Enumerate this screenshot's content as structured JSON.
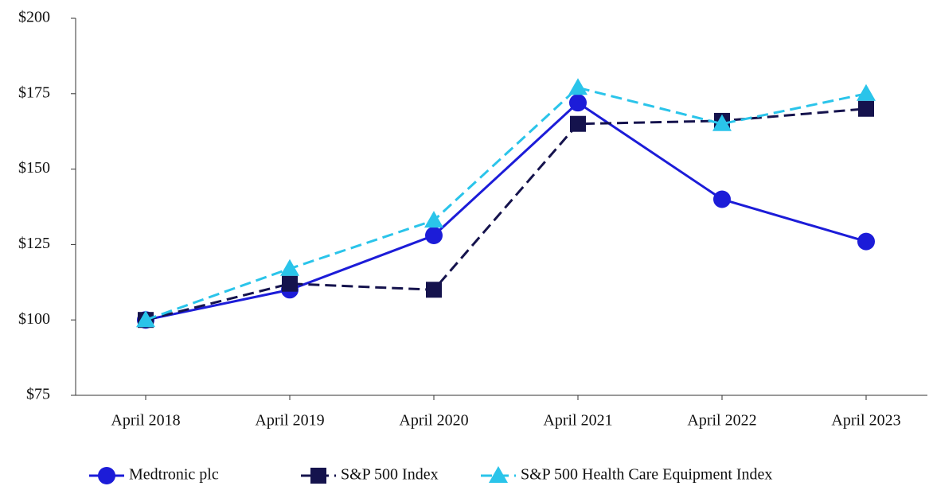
{
  "chart_data": {
    "type": "line",
    "categories": [
      "April 2018",
      "April 2019",
      "April 2020",
      "April 2021",
      "April 2022",
      "April 2023"
    ],
    "series": [
      {
        "name": "Medtronic plc",
        "color": "#1c1cd8",
        "dashed": false,
        "marker": "circle",
        "values": [
          100,
          110,
          128,
          172,
          140,
          126
        ]
      },
      {
        "name": "S&P 500 Index",
        "color": "#15134d",
        "dashed": true,
        "marker": "square",
        "values": [
          100,
          112,
          110,
          165,
          166,
          170
        ]
      },
      {
        "name": "S&P 500 Health Care Equipment Index",
        "color": "#2ac4ea",
        "dashed": true,
        "marker": "triangle",
        "values": [
          100,
          117,
          133,
          177,
          165,
          175
        ]
      }
    ],
    "ylim": [
      75,
      200
    ],
    "yticks": [
      {
        "value": 75,
        "label": "$75"
      },
      {
        "value": 100,
        "label": "$100"
      },
      {
        "value": 125,
        "label": "$125"
      },
      {
        "value": 150,
        "label": "$150"
      },
      {
        "value": 175,
        "label": "$175"
      },
      {
        "value": 200,
        "label": "$200"
      }
    ],
    "grid": false,
    "legend": "bottom"
  }
}
